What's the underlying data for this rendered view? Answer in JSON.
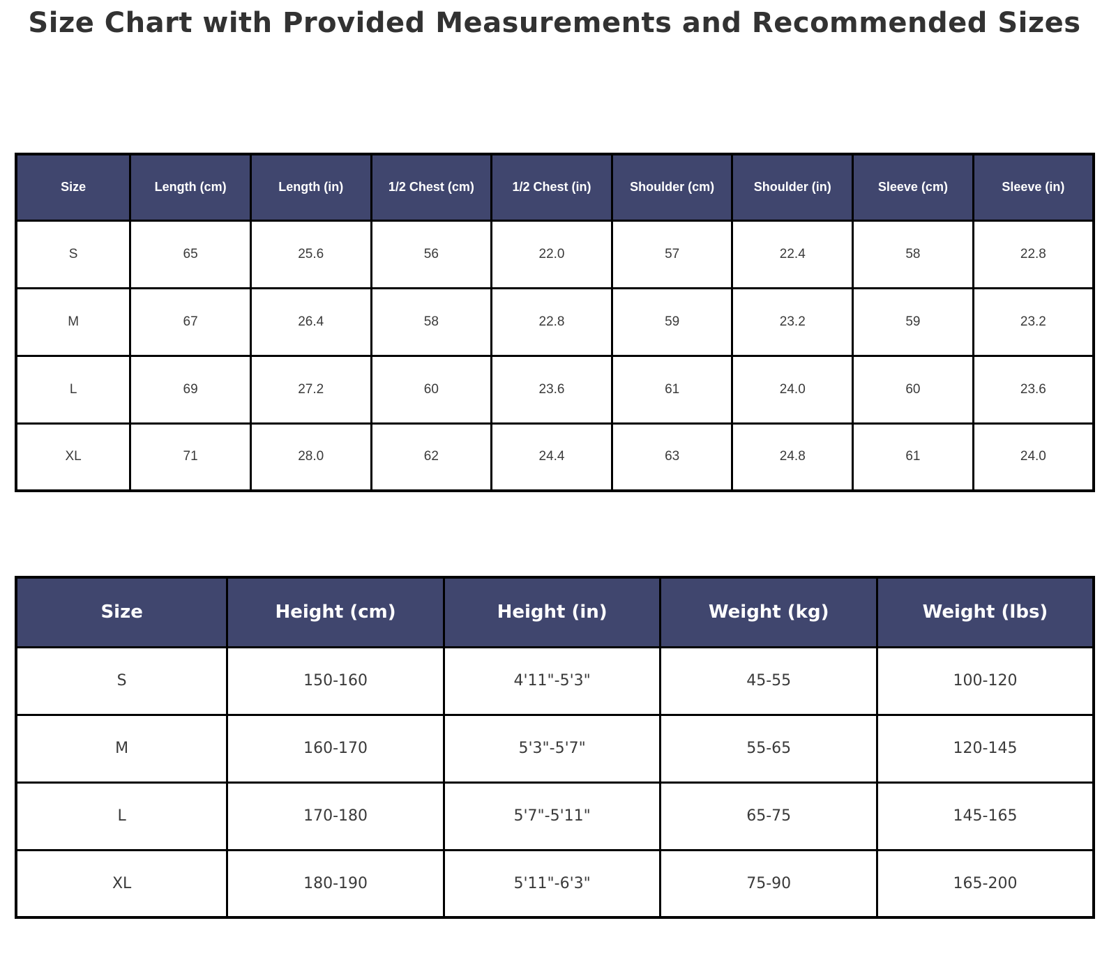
{
  "title": "Size Chart with Provided Measurements and Recommended Sizes",
  "colors": {
    "header_bg": "#40466e",
    "header_text": "#ffffff",
    "cell_text": "#3a3a3a",
    "border": "#000000",
    "row_bg": "#ffffff",
    "title_color": "#323232"
  },
  "chart_data": [
    {
      "type": "table",
      "name": "provided_measurements",
      "headers": [
        "Size",
        "Length (cm)",
        "Length (in)",
        "1/2 Chest (cm)",
        "1/2 Chest (in)",
        "Shoulder (cm)",
        "Shoulder (in)",
        "Sleeve (cm)",
        "Sleeve (in)"
      ],
      "rows": [
        [
          "S",
          "65",
          "25.6",
          "56",
          "22.0",
          "57",
          "22.4",
          "58",
          "22.8"
        ],
        [
          "M",
          "67",
          "26.4",
          "58",
          "22.8",
          "59",
          "23.2",
          "59",
          "23.2"
        ],
        [
          "L",
          "69",
          "27.2",
          "60",
          "23.6",
          "61",
          "24.0",
          "60",
          "23.6"
        ],
        [
          "XL",
          "71",
          "28.0",
          "62",
          "24.4",
          "63",
          "24.8",
          "61",
          "24.0"
        ]
      ]
    },
    {
      "type": "table",
      "name": "recommended_sizes",
      "headers": [
        "Size",
        "Height (cm)",
        "Height (in)",
        "Weight (kg)",
        "Weight (lbs)"
      ],
      "rows": [
        [
          "S",
          "150-160",
          "4'11\"-5'3\"",
          "45-55",
          "100-120"
        ],
        [
          "M",
          "160-170",
          "5'3\"-5'7\"",
          "55-65",
          "120-145"
        ],
        [
          "L",
          "170-180",
          "5'7\"-5'11\"",
          "65-75",
          "145-165"
        ],
        [
          "XL",
          "180-190",
          "5'11\"-6'3\"",
          "75-90",
          "165-200"
        ]
      ]
    }
  ]
}
